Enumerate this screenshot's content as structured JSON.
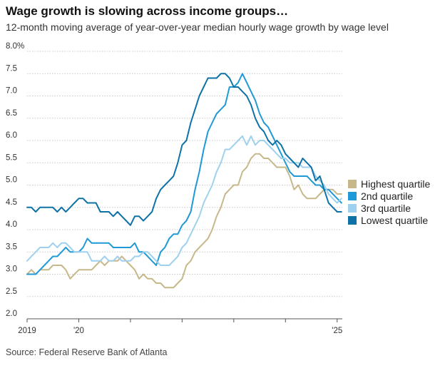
{
  "header": {
    "title": "Wage growth is slowing across income groups…",
    "subtitle": "12-month moving average of year-over-year median hourly wage growth by wage level"
  },
  "footer": {
    "source": "Source: Federal Reserve Bank of Atlanta"
  },
  "colors": {
    "highest": "#c7b88a",
    "q2": "#1f9ad6",
    "q3": "#9fd1ee",
    "lowest": "#0e72a6",
    "grid": "#c8c8c8",
    "axis": "#555555"
  },
  "chart_data": {
    "type": "line",
    "title": "Wage growth is slowing across income groups…",
    "subtitle": "12-month moving average of year-over-year median hourly wage growth by wage level",
    "xlabel": "",
    "ylabel": "",
    "ylim": [
      2.0,
      8.0
    ],
    "yticks": [
      {
        "value": 2.0,
        "label": "2.0"
      },
      {
        "value": 2.5,
        "label": "2.5"
      },
      {
        "value": 3.0,
        "label": "3.0"
      },
      {
        "value": 3.5,
        "label": "3.5"
      },
      {
        "value": 4.0,
        "label": "4.0"
      },
      {
        "value": 4.5,
        "label": "4.5"
      },
      {
        "value": 5.0,
        "label": "5.0"
      },
      {
        "value": 5.5,
        "label": "5.5"
      },
      {
        "value": 6.0,
        "label": "6.0"
      },
      {
        "value": 6.5,
        "label": "6.5"
      },
      {
        "value": 7.0,
        "label": "7.0"
      },
      {
        "value": 7.5,
        "label": "7.5"
      },
      {
        "value": 8.0,
        "label": "8.0%"
      }
    ],
    "xlim": [
      2019.0,
      2025.1
    ],
    "xticks": [
      {
        "value": 2019,
        "label": "2019"
      },
      {
        "value": 2020,
        "label": "'20"
      },
      {
        "value": 2021,
        "label": ""
      },
      {
        "value": 2022,
        "label": ""
      },
      {
        "value": 2023,
        "label": ""
      },
      {
        "value": 2024,
        "label": ""
      },
      {
        "value": 2025,
        "label": "'25"
      }
    ],
    "grid": true,
    "legend_position": "right",
    "series": [
      {
        "name": "Highest quartile",
        "color": "#c7b88a",
        "start": 2019.0,
        "step_months": 1,
        "values": [
          3.0,
          3.1,
          3.0,
          3.1,
          3.1,
          3.1,
          3.2,
          3.2,
          3.2,
          3.1,
          2.9,
          3.0,
          3.1,
          3.1,
          3.1,
          3.1,
          3.2,
          3.3,
          3.2,
          3.3,
          3.3,
          3.3,
          3.4,
          3.3,
          3.2,
          3.1,
          2.9,
          3.0,
          2.9,
          2.9,
          2.8,
          2.8,
          2.7,
          2.7,
          2.7,
          2.8,
          2.9,
          3.2,
          3.3,
          3.5,
          3.6,
          3.7,
          3.8,
          4.0,
          4.3,
          4.5,
          4.8,
          4.9,
          5.0,
          5.0,
          5.3,
          5.4,
          5.6,
          5.7,
          5.7,
          5.6,
          5.6,
          5.5,
          5.4,
          5.4,
          5.4,
          5.2,
          4.9,
          5.0,
          4.8,
          4.7,
          4.7,
          4.7,
          4.8,
          4.9,
          4.9,
          4.9,
          4.8,
          4.8
        ]
      },
      {
        "name": "2nd quartile",
        "color": "#1f9ad6",
        "start": 2019.0,
        "step_months": 1,
        "values": [
          3.0,
          3.0,
          3.0,
          3.1,
          3.2,
          3.3,
          3.4,
          3.4,
          3.5,
          3.6,
          3.5,
          3.5,
          3.5,
          3.6,
          3.8,
          3.7,
          3.7,
          3.7,
          3.7,
          3.7,
          3.6,
          3.6,
          3.6,
          3.6,
          3.6,
          3.7,
          3.5,
          3.5,
          3.4,
          3.3,
          3.2,
          3.5,
          3.6,
          3.8,
          3.9,
          3.9,
          4.1,
          4.2,
          4.4,
          4.9,
          5.3,
          5.8,
          6.2,
          6.4,
          6.6,
          6.7,
          6.8,
          7.2,
          7.2,
          7.3,
          7.5,
          7.3,
          7.1,
          6.9,
          6.6,
          6.4,
          6.3,
          6.1,
          5.9,
          5.7,
          5.5,
          5.3,
          5.2,
          5.2,
          5.2,
          5.2,
          5.1,
          5.0,
          5.0,
          4.9,
          4.9,
          4.8,
          4.7,
          4.6
        ]
      },
      {
        "name": "3rd quartile",
        "color": "#9fd1ee",
        "start": 2019.0,
        "step_months": 1,
        "values": [
          3.3,
          3.4,
          3.5,
          3.6,
          3.6,
          3.6,
          3.7,
          3.6,
          3.7,
          3.7,
          3.6,
          3.5,
          3.5,
          3.5,
          3.5,
          3.3,
          3.3,
          3.3,
          3.4,
          3.3,
          3.3,
          3.4,
          3.3,
          3.3,
          3.3,
          3.4,
          3.4,
          3.5,
          3.5,
          3.4,
          3.3,
          3.2,
          3.2,
          3.2,
          3.3,
          3.4,
          3.6,
          3.7,
          3.9,
          4.1,
          4.3,
          4.6,
          4.8,
          5.0,
          5.3,
          5.5,
          5.8,
          5.8,
          5.9,
          6.0,
          6.1,
          5.9,
          6.1,
          5.9,
          6.0,
          6.0,
          5.9,
          5.8,
          5.7,
          5.6,
          5.6,
          5.5,
          5.5,
          5.5,
          5.4,
          5.4,
          5.4,
          5.2,
          5.1,
          5.0,
          4.8,
          4.7,
          4.6,
          4.7
        ]
      },
      {
        "name": "Lowest quartile",
        "color": "#0e72a6",
        "start": 2019.0,
        "step_months": 1,
        "values": [
          4.5,
          4.5,
          4.4,
          4.5,
          4.5,
          4.5,
          4.5,
          4.4,
          4.5,
          4.4,
          4.5,
          4.6,
          4.7,
          4.7,
          4.6,
          4.6,
          4.6,
          4.4,
          4.4,
          4.4,
          4.3,
          4.4,
          4.3,
          4.2,
          4.1,
          4.3,
          4.3,
          4.2,
          4.3,
          4.4,
          4.7,
          4.9,
          5.0,
          5.1,
          5.2,
          5.5,
          5.9,
          6.0,
          6.4,
          6.7,
          7.0,
          7.2,
          7.4,
          7.4,
          7.4,
          7.5,
          7.5,
          7.4,
          7.2,
          7.2,
          7.1,
          7.0,
          6.8,
          6.5,
          6.3,
          6.2,
          6.0,
          5.9,
          6.0,
          5.9,
          5.7,
          5.6,
          5.5,
          5.4,
          5.6,
          5.5,
          5.4,
          5.1,
          5.2,
          4.9,
          4.6,
          4.5,
          4.4,
          4.4
        ]
      }
    ]
  }
}
